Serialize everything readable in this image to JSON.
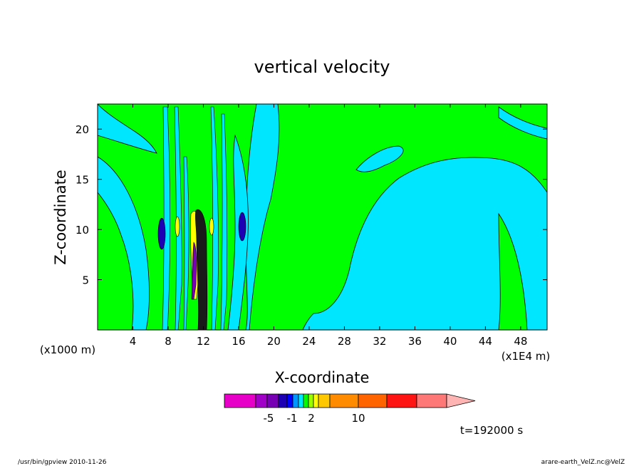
{
  "chart_data": {
    "type": "heatmap",
    "title": "vertical velocity",
    "xlabel": "X-coordinate",
    "ylabel": "Z-coordinate",
    "x_unit_left": "(x1000 m)",
    "x_unit_right": "(x1E4 m)",
    "x_ticks": [
      "4",
      "8",
      "12",
      "16",
      "20",
      "24",
      "28",
      "32",
      "36",
      "40",
      "44",
      "48"
    ],
    "y_ticks": [
      "5",
      "10",
      "15",
      "20"
    ],
    "xlim": [
      0,
      51
    ],
    "ylim": [
      0,
      22.5
    ],
    "colorbar": {
      "colors": [
        "#e600c8",
        "#a000c8",
        "#7800b4",
        "#1e00b4",
        "#0000ff",
        "#0096ff",
        "#00e6ff",
        "#00ff00",
        "#9bff00",
        "#ffff00",
        "#ffc800",
        "#ff8c00",
        "#ff6400",
        "#ff1414",
        "#ff7878",
        "#ffb4b4"
      ],
      "tick_labels": [
        "-5",
        "-1",
        "2",
        "10"
      ]
    },
    "time_label": "t=192000 s",
    "background_color": "#00e6ff",
    "positive_color": "#00ff00"
  },
  "footer": {
    "left": "/usr/bin/gpview   2010-11-26",
    "right": "arare-earth_VelZ.nc@VelZ"
  }
}
